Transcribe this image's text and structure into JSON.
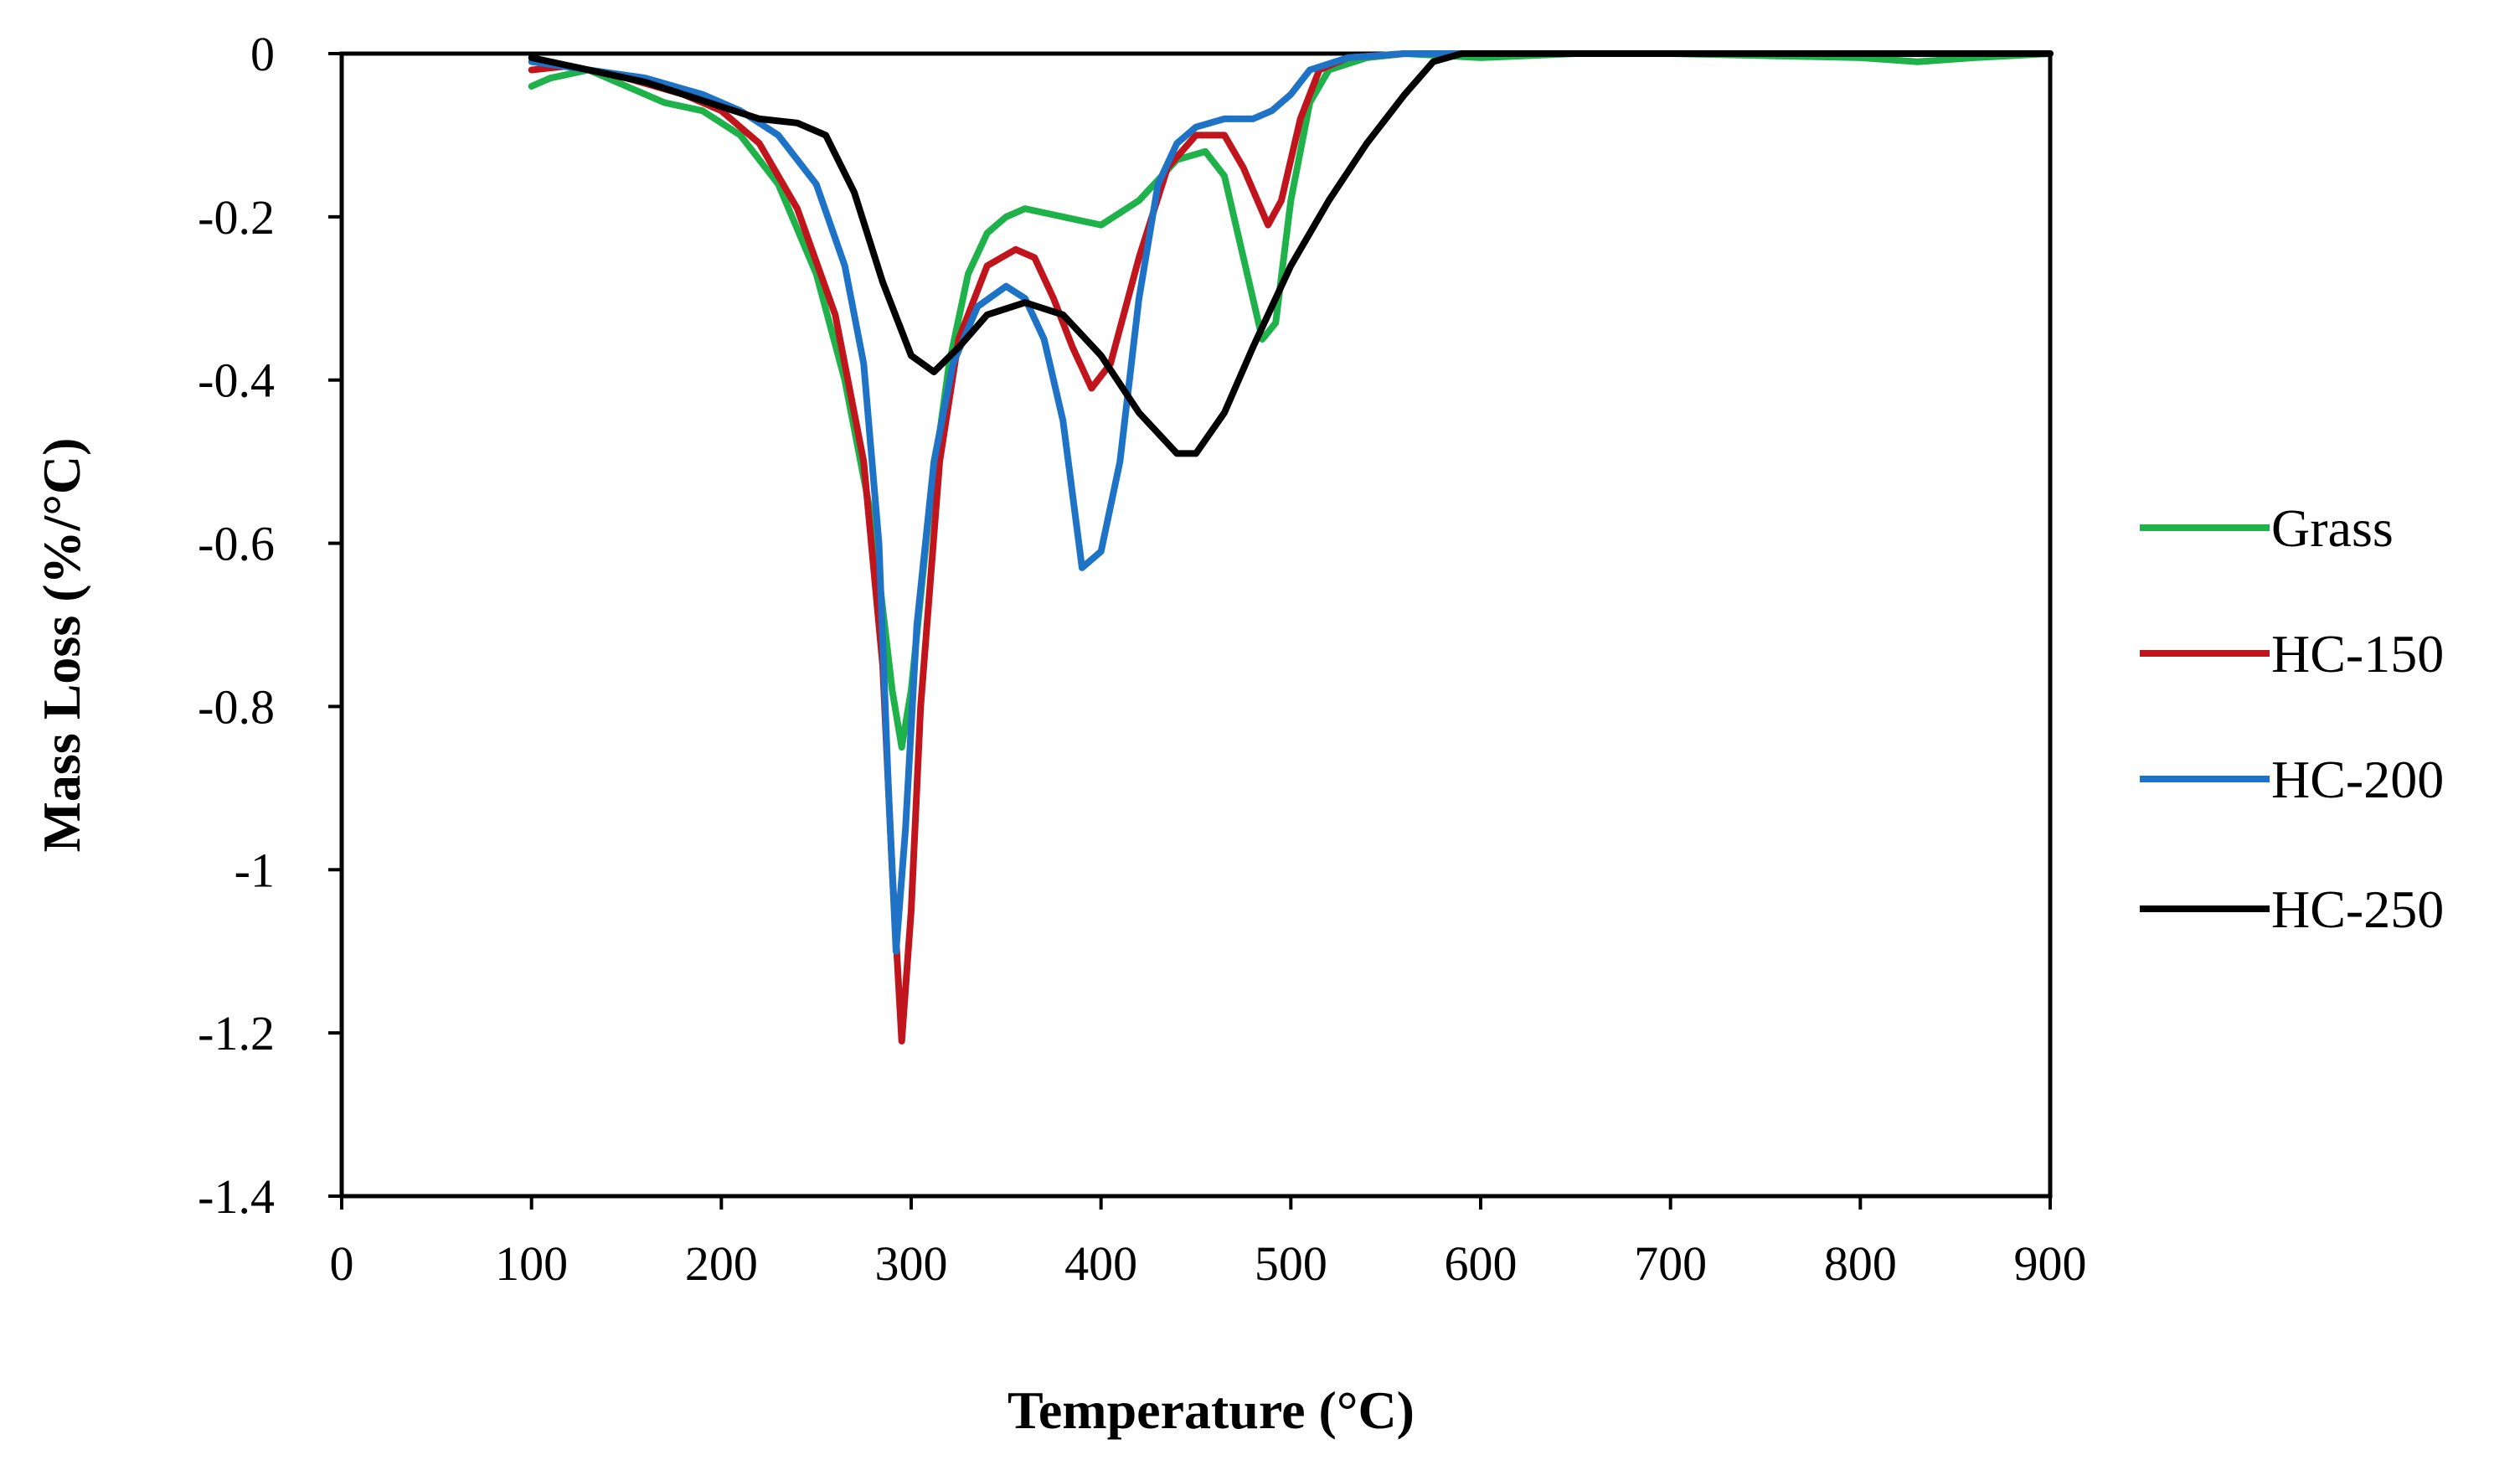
{
  "chart_data": {
    "type": "line",
    "title": "",
    "xlabel": "Temperature (°C)",
    "ylabel": "Mass Loss (%/°C)",
    "xlim": [
      0,
      900
    ],
    "ylim": [
      -1.4,
      0
    ],
    "x_ticks": [
      0,
      100,
      200,
      300,
      400,
      500,
      600,
      700,
      800,
      900
    ],
    "y_ticks": [
      0,
      -0.2,
      -0.4,
      -0.6,
      -0.8,
      -1,
      -1.2,
      -1.4
    ],
    "x_tick_labels": [
      "0",
      "100",
      "200",
      "300",
      "400",
      "500",
      "600",
      "700",
      "800",
      "900"
    ],
    "y_tick_labels": [
      "0",
      "-0.2",
      "-0.4",
      "-0.6",
      "-0.8",
      "-1",
      "-1.2",
      "-1.4"
    ],
    "grid": false,
    "legend_position": "right",
    "series": [
      {
        "name": "Grass",
        "color": "#1fb24a",
        "points": [
          [
            100,
            -0.04
          ],
          [
            110,
            -0.03
          ],
          [
            130,
            -0.02
          ],
          [
            150,
            -0.04
          ],
          [
            170,
            -0.06
          ],
          [
            190,
            -0.07
          ],
          [
            210,
            -0.1
          ],
          [
            230,
            -0.16
          ],
          [
            250,
            -0.27
          ],
          [
            265,
            -0.4
          ],
          [
            280,
            -0.58
          ],
          [
            290,
            -0.78
          ],
          [
            295,
            -0.85
          ],
          [
            300,
            -0.78
          ],
          [
            310,
            -0.55
          ],
          [
            320,
            -0.38
          ],
          [
            330,
            -0.27
          ],
          [
            340,
            -0.22
          ],
          [
            350,
            -0.2
          ],
          [
            360,
            -0.19
          ],
          [
            380,
            -0.2
          ],
          [
            400,
            -0.21
          ],
          [
            420,
            -0.18
          ],
          [
            440,
            -0.13
          ],
          [
            455,
            -0.12
          ],
          [
            465,
            -0.15
          ],
          [
            475,
            -0.25
          ],
          [
            485,
            -0.35
          ],
          [
            492,
            -0.33
          ],
          [
            500,
            -0.18
          ],
          [
            510,
            -0.06
          ],
          [
            520,
            -0.02
          ],
          [
            540,
            -0.005
          ],
          [
            560,
            0
          ],
          [
            600,
            -0.005
          ],
          [
            650,
            0
          ],
          [
            700,
            0
          ],
          [
            800,
            -0.005
          ],
          [
            830,
            -0.01
          ],
          [
            860,
            -0.005
          ],
          [
            900,
            0
          ]
        ]
      },
      {
        "name": "HC-150",
        "color": "#c0151c",
        "points": [
          [
            100,
            -0.02
          ],
          [
            120,
            -0.015
          ],
          [
            150,
            -0.03
          ],
          [
            180,
            -0.05
          ],
          [
            200,
            -0.07
          ],
          [
            220,
            -0.11
          ],
          [
            240,
            -0.19
          ],
          [
            260,
            -0.32
          ],
          [
            275,
            -0.5
          ],
          [
            285,
            -0.75
          ],
          [
            290,
            -1.0
          ],
          [
            295,
            -1.21
          ],
          [
            300,
            -1.05
          ],
          [
            305,
            -0.8
          ],
          [
            315,
            -0.5
          ],
          [
            325,
            -0.35
          ],
          [
            340,
            -0.26
          ],
          [
            355,
            -0.24
          ],
          [
            365,
            -0.25
          ],
          [
            375,
            -0.3
          ],
          [
            385,
            -0.36
          ],
          [
            395,
            -0.41
          ],
          [
            405,
            -0.38
          ],
          [
            420,
            -0.25
          ],
          [
            435,
            -0.14
          ],
          [
            450,
            -0.1
          ],
          [
            465,
            -0.1
          ],
          [
            475,
            -0.14
          ],
          [
            488,
            -0.21
          ],
          [
            495,
            -0.18
          ],
          [
            505,
            -0.08
          ],
          [
            515,
            -0.02
          ],
          [
            530,
            -0.005
          ],
          [
            560,
            0
          ],
          [
            600,
            0
          ],
          [
            900,
            0
          ]
        ]
      },
      {
        "name": "HC-200",
        "color": "#1e73c6",
        "points": [
          [
            100,
            -0.01
          ],
          [
            130,
            -0.02
          ],
          [
            160,
            -0.03
          ],
          [
            190,
            -0.05
          ],
          [
            210,
            -0.07
          ],
          [
            230,
            -0.1
          ],
          [
            250,
            -0.16
          ],
          [
            265,
            -0.26
          ],
          [
            275,
            -0.38
          ],
          [
            283,
            -0.6
          ],
          [
            288,
            -0.9
          ],
          [
            292,
            -1.1
          ],
          [
            297,
            -0.95
          ],
          [
            303,
            -0.7
          ],
          [
            312,
            -0.5
          ],
          [
            322,
            -0.38
          ],
          [
            335,
            -0.31
          ],
          [
            350,
            -0.285
          ],
          [
            360,
            -0.3
          ],
          [
            370,
            -0.35
          ],
          [
            380,
            -0.45
          ],
          [
            390,
            -0.63
          ],
          [
            400,
            -0.61
          ],
          [
            410,
            -0.5
          ],
          [
            420,
            -0.3
          ],
          [
            430,
            -0.16
          ],
          [
            440,
            -0.11
          ],
          [
            450,
            -0.09
          ],
          [
            465,
            -0.08
          ],
          [
            480,
            -0.08
          ],
          [
            490,
            -0.07
          ],
          [
            500,
            -0.05
          ],
          [
            510,
            -0.02
          ],
          [
            530,
            -0.005
          ],
          [
            560,
            0
          ],
          [
            900,
            0
          ]
        ]
      },
      {
        "name": "HC-250",
        "color": "#000000",
        "points": [
          [
            100,
            -0.005
          ],
          [
            130,
            -0.02
          ],
          [
            160,
            -0.035
          ],
          [
            180,
            -0.05
          ],
          [
            200,
            -0.065
          ],
          [
            220,
            -0.08
          ],
          [
            240,
            -0.085
          ],
          [
            255,
            -0.1
          ],
          [
            270,
            -0.17
          ],
          [
            285,
            -0.28
          ],
          [
            300,
            -0.37
          ],
          [
            312,
            -0.39
          ],
          [
            325,
            -0.36
          ],
          [
            340,
            -0.32
          ],
          [
            360,
            -0.305
          ],
          [
            380,
            -0.32
          ],
          [
            400,
            -0.37
          ],
          [
            420,
            -0.44
          ],
          [
            440,
            -0.49
          ],
          [
            450,
            -0.49
          ],
          [
            465,
            -0.44
          ],
          [
            480,
            -0.36
          ],
          [
            500,
            -0.26
          ],
          [
            520,
            -0.18
          ],
          [
            540,
            -0.11
          ],
          [
            560,
            -0.05
          ],
          [
            575,
            -0.01
          ],
          [
            590,
            0
          ],
          [
            650,
            0
          ],
          [
            900,
            0
          ]
        ]
      }
    ]
  }
}
